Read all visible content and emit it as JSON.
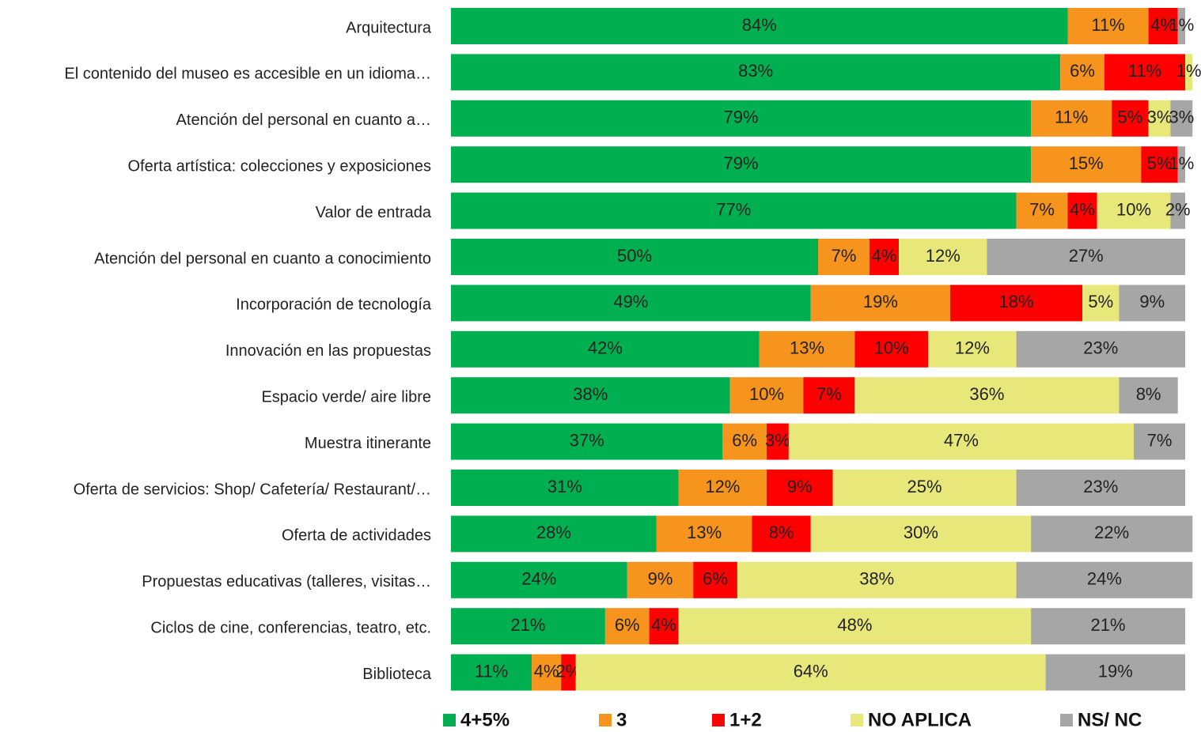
{
  "chart_data": {
    "type": "stacked_barh",
    "categories": [
      "Arquitectura",
      "El contenido del museo es accesible en un idioma…",
      "Atención del personal en cuanto a…",
      "Oferta artística: colecciones y exposiciones",
      "Valor de entrada",
      "Atención del personal en cuanto a conocimiento",
      "Incorporación de tecnología",
      "Innovación en las propuestas",
      "Espacio verde/ aire libre",
      "Muestra itinerante",
      "Oferta de servicios: Shop/ Cafetería/ Restaurant/…",
      "Oferta de actividades",
      "Propuestas educativas (talleres, visitas…",
      "Ciclos de cine,  conferencias, teatro, etc.",
      "Biblioteca"
    ],
    "xlim": [
      0,
      100
    ],
    "series": [
      {
        "name": "4+5%",
        "color": "#00b050",
        "values": [
          84,
          83,
          79,
          79,
          77,
          50,
          49,
          42,
          38,
          37,
          31,
          28,
          24,
          21,
          11
        ],
        "value_labels": [
          "84%",
          "83%",
          "79%",
          "79%",
          "77%",
          "50%",
          "49%",
          "42%",
          "38%",
          "37%",
          "31%",
          "28%",
          "24%",
          "21%",
          "11%"
        ]
      },
      {
        "name": "3",
        "color": "#f7941d",
        "values": [
          11,
          6,
          11,
          15,
          7,
          7,
          19,
          13,
          10,
          6,
          12,
          13,
          9,
          6,
          4
        ],
        "value_labels": [
          "11%",
          "6%",
          "11%",
          "15%",
          "7%",
          "7%",
          "19%",
          "13%",
          "10%",
          "6%",
          "12%",
          "13%",
          "9%",
          "6%",
          "4%"
        ]
      },
      {
        "name": "1+2",
        "color": "#ff0000",
        "values": [
          4,
          11,
          5,
          5,
          4,
          4,
          18,
          10,
          7,
          3,
          9,
          8,
          6,
          4,
          2
        ],
        "value_labels": [
          "4%",
          "11%",
          "5%",
          "5%",
          "4%",
          "4%",
          "18%",
          "10%",
          "7%",
          "3%",
          "9%",
          "8%",
          "6%",
          "4%",
          "2%"
        ]
      },
      {
        "name": "NO APLICA",
        "color": "#e8e87a",
        "values": [
          null,
          1,
          3,
          null,
          10,
          12,
          5,
          12,
          36,
          47,
          25,
          30,
          38,
          48,
          64
        ],
        "value_labels": [
          null,
          "1%",
          "3%",
          null,
          "10%",
          "12%",
          "5%",
          "12%",
          "36%",
          "47%",
          "25%",
          "30%",
          "38%",
          "48%",
          "64%"
        ]
      },
      {
        "name": "NS/ NC",
        "color": "#a6a6a6",
        "values": [
          1,
          null,
          3,
          1,
          2,
          27,
          9,
          23,
          8,
          7,
          23,
          22,
          24,
          21,
          19
        ],
        "value_labels": [
          "1%",
          null,
          "3%",
          "1%",
          "2%",
          "27%",
          "9%",
          "23%",
          "8%",
          "7%",
          "23%",
          "22%",
          "24%",
          "21%",
          "19%"
        ]
      }
    ]
  }
}
